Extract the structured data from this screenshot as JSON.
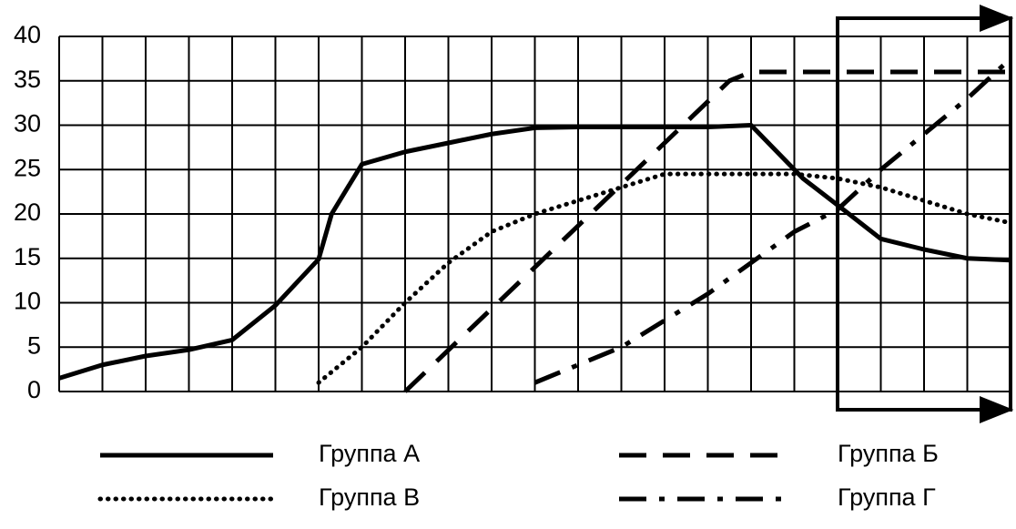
{
  "chart_data": {
    "type": "line",
    "xlim": [
      0,
      22
    ],
    "ylim": [
      0,
      40
    ],
    "yticks": [
      0,
      5,
      10,
      15,
      20,
      25,
      30,
      35,
      40
    ],
    "grid": true,
    "series": [
      {
        "name": "Группа А",
        "color": "#000000",
        "style": "solid",
        "x": [
          0,
          1,
          2,
          3,
          4,
          5,
          6,
          6.3,
          7,
          8,
          9,
          10,
          11,
          12,
          13,
          14,
          15,
          16,
          17.2,
          18,
          19,
          20,
          21,
          22
        ],
        "values": [
          1.5,
          3,
          4,
          4.7,
          5.8,
          9.7,
          14.9,
          20,
          25.6,
          27,
          28,
          29,
          29.7,
          29.8,
          29.8,
          29.8,
          29.8,
          30,
          24,
          21,
          17.2,
          16,
          15,
          14.8
        ]
      },
      {
        "name": "Группа Б",
        "color": "#000000",
        "style": "dashed",
        "x": [
          8,
          15.5,
          16,
          22
        ],
        "values": [
          0,
          35,
          36,
          36
        ]
      },
      {
        "name": "Группа В",
        "color": "#000000",
        "style": "dotted",
        "x": [
          6,
          7,
          8,
          9,
          10,
          11,
          12,
          13,
          14,
          15,
          16,
          17,
          18,
          19,
          20,
          21,
          22
        ],
        "values": [
          1,
          5,
          10,
          14.5,
          18,
          20,
          21.5,
          23,
          24.5,
          24.5,
          24.5,
          24.5,
          24,
          23,
          21.5,
          20,
          19
        ]
      },
      {
        "name": "Группа Г",
        "color": "#000000",
        "style": "dashdot",
        "x": [
          11,
          12,
          13,
          14,
          15,
          16,
          17,
          18,
          19,
          20,
          21,
          22
        ],
        "values": [
          1,
          3,
          5,
          8,
          11,
          14.5,
          18,
          20.5,
          25,
          29,
          33,
          37.5
        ]
      }
    ]
  }
}
